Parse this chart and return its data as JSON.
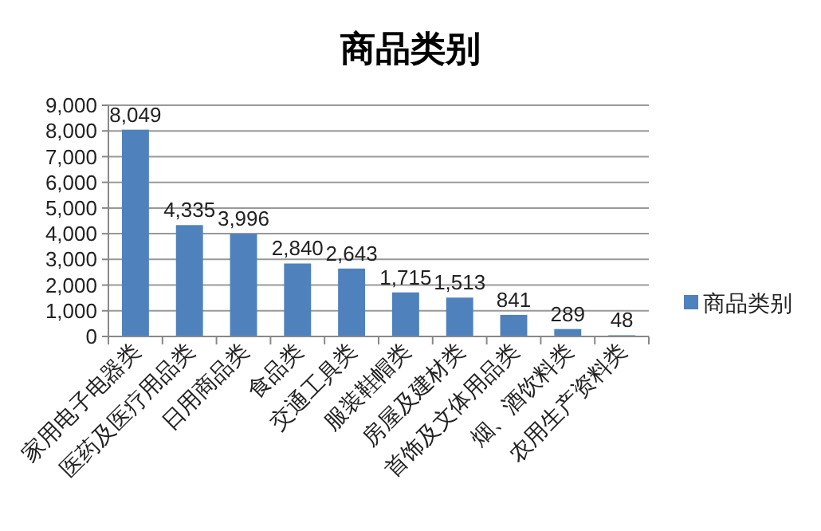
{
  "chart_data": {
    "type": "bar",
    "title": "商品类别",
    "categories": [
      "家用电子电器类",
      "医药及医疗用品类",
      "日用商品类",
      "食品类",
      "交通工具类",
      "服装鞋帽类",
      "房屋及建材类",
      "首饰及文体用品类",
      "烟、酒饮料类",
      "农用生产资料类"
    ],
    "series": [
      {
        "name": "商品类别",
        "color": "#4f81bd",
        "values": [
          8049,
          4335,
          3996,
          2840,
          2643,
          1715,
          1513,
          841,
          289,
          48
        ],
        "value_labels": [
          "8,049",
          "4,335",
          "3,996",
          "2,840",
          "2,643",
          "1,715",
          "1,513",
          "841",
          "289",
          "48"
        ]
      }
    ],
    "ylim": [
      0,
      9000
    ],
    "yticks": [
      0,
      {
        "value": 1000,
        "label": "1,000"
      },
      {
        "value": 2000,
        "label": "2,000"
      },
      {
        "value": 3000,
        "label": "3,000"
      },
      {
        "value": 4000,
        "label": "4,000"
      },
      {
        "value": 5000,
        "label": "5,000"
      },
      {
        "value": 6000,
        "label": "6,000"
      },
      {
        "value": 7000,
        "label": "7,000"
      },
      {
        "value": 8000,
        "label": "8,000"
      },
      {
        "value": 9000,
        "label": "9,000"
      }
    ],
    "grid": "y",
    "legend": "right"
  }
}
